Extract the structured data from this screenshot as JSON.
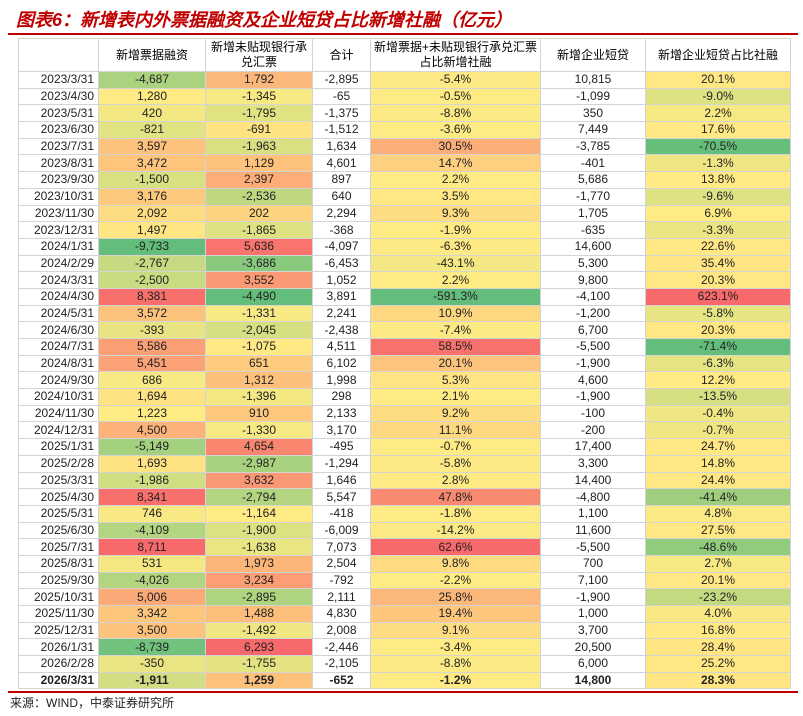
{
  "title": "图表6：新增表内外票据融资及企业短贷占比新增社融（亿元）",
  "table": {
    "header": [
      "新增票据融资",
      "新增未贴现银行承兑汇票",
      "合计",
      "新增票据+未贴现银行承兑汇票占比新增社融",
      "新增企业短贷",
      "新增企业短贷占比社融"
    ],
    "rows": [
      [
        "2023/3/31",
        "-4,687",
        "1,792",
        "-2,895",
        "-5.4%",
        "10,815",
        "20.1%"
      ],
      [
        "2023/4/30",
        "1,280",
        "-1,345",
        "-65",
        "-0.5%",
        "-1,099",
        "-9.0%"
      ],
      [
        "2023/5/31",
        "420",
        "-1,795",
        "-1,375",
        "-8.8%",
        "350",
        "2.2%"
      ],
      [
        "2023/6/30",
        "-821",
        "-691",
        "-1,512",
        "-3.6%",
        "7,449",
        "17.6%"
      ],
      [
        "2023/7/31",
        "3,597",
        "-1,963",
        "1,634",
        "30.5%",
        "-3,785",
        "-70.5%"
      ],
      [
        "2023/8/31",
        "3,472",
        "1,129",
        "4,601",
        "14.7%",
        "-401",
        "-1.3%"
      ],
      [
        "2023/9/30",
        "-1,500",
        "2,397",
        "897",
        "2.2%",
        "5,686",
        "13.8%"
      ],
      [
        "2023/10/31",
        "3,176",
        "-2,536",
        "640",
        "3.5%",
        "-1,770",
        "-9.6%"
      ],
      [
        "2023/11/30",
        "2,092",
        "202",
        "2,294",
        "9.3%",
        "1,705",
        "6.9%"
      ],
      [
        "2023/12/31",
        "1,497",
        "-1,865",
        "-368",
        "-1.9%",
        "-635",
        "-3.3%"
      ],
      [
        "2024/1/31",
        "-9,733",
        "5,636",
        "-4,097",
        "-6.3%",
        "14,600",
        "22.6%"
      ],
      [
        "2024/2/29",
        "-2,767",
        "-3,686",
        "-6,453",
        "-43.1%",
        "5,300",
        "35.4%"
      ],
      [
        "2024/3/31",
        "-2,500",
        "3,552",
        "1,052",
        "2.2%",
        "9,800",
        "20.3%"
      ],
      [
        "2024/4/30",
        "8,381",
        "-4,490",
        "3,891",
        "-591.3%",
        "-4,100",
        "623.1%"
      ],
      [
        "2024/5/31",
        "3,572",
        "-1,331",
        "2,241",
        "10.9%",
        "-1,200",
        "-5.8%"
      ],
      [
        "2024/6/30",
        "-393",
        "-2,045",
        "-2,438",
        "-7.4%",
        "6,700",
        "20.3%"
      ],
      [
        "2024/7/31",
        "5,586",
        "-1,075",
        "4,511",
        "58.5%",
        "-5,500",
        "-71.4%"
      ],
      [
        "2024/8/31",
        "5,451",
        "651",
        "6,102",
        "20.1%",
        "-1,900",
        "-6.3%"
      ],
      [
        "2024/9/30",
        "686",
        "1,312",
        "1,998",
        "5.3%",
        "4,600",
        "12.2%"
      ],
      [
        "2024/10/31",
        "1,694",
        "-1,396",
        "298",
        "2.1%",
        "-1,900",
        "-13.5%"
      ],
      [
        "2024/11/30",
        "1,223",
        "910",
        "2,133",
        "9.2%",
        "-100",
        "-0.4%"
      ],
      [
        "2024/12/31",
        "4,500",
        "-1,330",
        "3,170",
        "11.1%",
        "-200",
        "-0.7%"
      ],
      [
        "2025/1/31",
        "-5,149",
        "4,654",
        "-495",
        "-0.7%",
        "17,400",
        "24.7%"
      ],
      [
        "2025/2/28",
        "1,693",
        "-2,987",
        "-1,294",
        "-5.8%",
        "3,300",
        "14.8%"
      ],
      [
        "2025/3/31",
        "-1,986",
        "3,632",
        "1,646",
        "2.8%",
        "14,400",
        "24.4%"
      ],
      [
        "2025/4/30",
        "8,341",
        "-2,794",
        "5,547",
        "47.8%",
        "-4,800",
        "-41.4%"
      ],
      [
        "2025/5/31",
        "746",
        "-1,164",
        "-418",
        "-1.8%",
        "1,100",
        "4.8%"
      ],
      [
        "2025/6/30",
        "-4,109",
        "-1,900",
        "-6,009",
        "-14.2%",
        "11,600",
        "27.5%"
      ],
      [
        "2025/7/31",
        "8,711",
        "-1,638",
        "7,073",
        "62.6%",
        "-5,500",
        "-48.6%"
      ],
      [
        "2025/8/31",
        "531",
        "1,973",
        "2,504",
        "9.8%",
        "700",
        "2.7%"
      ],
      [
        "2025/9/30",
        "-4,026",
        "3,234",
        "-792",
        "-2.2%",
        "7,100",
        "20.1%"
      ],
      [
        "2025/10/31",
        "5,006",
        "-2,895",
        "2,111",
        "25.8%",
        "-1,900",
        "-23.2%"
      ],
      [
        "2025/11/30",
        "3,342",
        "1,488",
        "4,830",
        "19.4%",
        "1,000",
        "4.0%"
      ],
      [
        "2025/12/31",
        "3,500",
        "-1,492",
        "2,008",
        "9.1%",
        "3,700",
        "16.8%"
      ],
      [
        "2026/1/31",
        "-8,739",
        "6,293",
        "-2,446",
        "-3.4%",
        "20,500",
        "28.4%"
      ],
      [
        "2026/2/28",
        "-350",
        "-1,755",
        "-2,105",
        "-8.8%",
        "6,000",
        "25.2%"
      ],
      [
        "2026/3/31",
        "-1,911",
        "1,259",
        "-652",
        "-1.2%",
        "14,800",
        "28.3%"
      ]
    ]
  },
  "source": "来源：WIND，中泰证券研究所"
}
